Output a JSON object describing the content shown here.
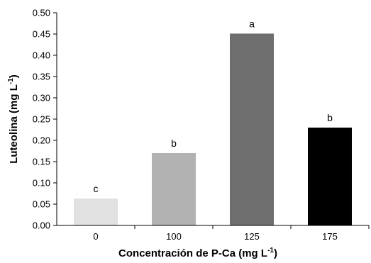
{
  "chart_data": {
    "type": "bar",
    "categories": [
      "0",
      "100",
      "125",
      "175"
    ],
    "values": [
      0.063,
      0.17,
      0.451,
      0.23
    ],
    "bar_labels": [
      "c",
      "b",
      "a",
      "b"
    ],
    "bar_colors": [
      "#e1e1e1",
      "#b2b2b2",
      "#6e6e6e",
      "#000000"
    ],
    "ylim": [
      0,
      0.5
    ],
    "y_ticks": [
      "0.00",
      "0.05",
      "0.10",
      "0.15",
      "0.20",
      "0.25",
      "0.30",
      "0.35",
      "0.40",
      "0.45",
      "0.50"
    ],
    "y_tick_values": [
      0,
      0.05,
      0.1,
      0.15,
      0.2,
      0.25,
      0.3,
      0.35,
      0.4,
      0.45,
      0.5
    ],
    "ylabel": "Luteolina (mg L",
    "ylabel_sup": "-1",
    "ylabel_end": ")",
    "xlabel": "Concentración de P-Ca (mg L",
    "xlabel_sup": "-1",
    "xlabel_end": ")",
    "grid": false,
    "legend": "none"
  }
}
